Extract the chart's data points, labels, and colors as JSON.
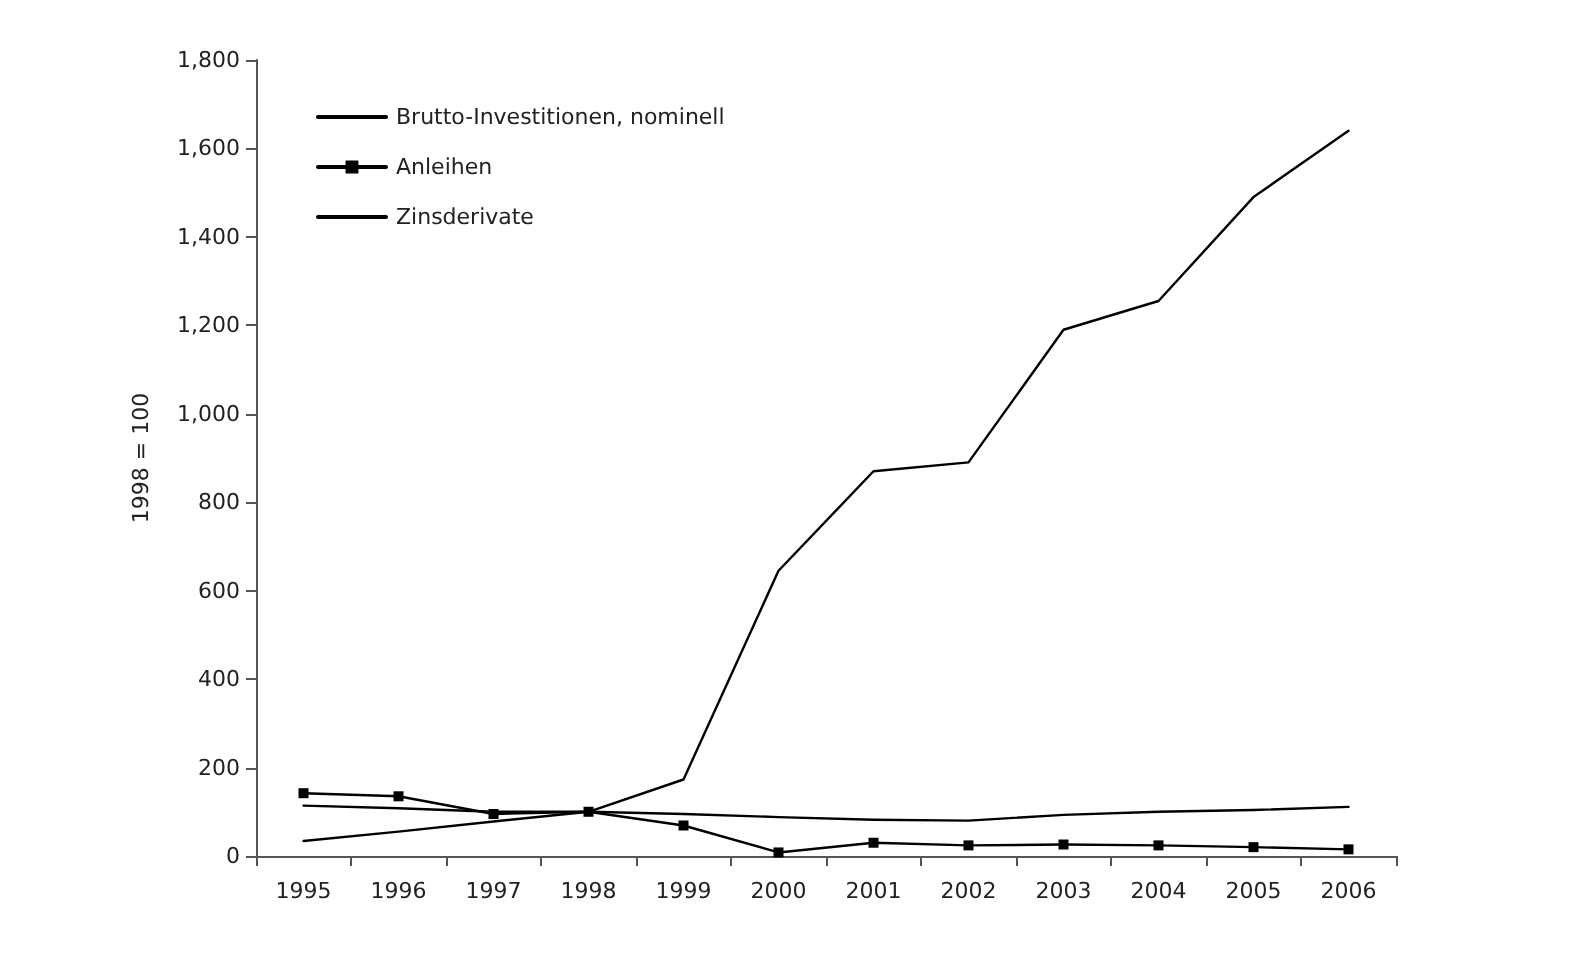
{
  "chart_data": {
    "type": "line",
    "ylabel": "1998 = 100",
    "categories": [
      "1995",
      "1996",
      "1997",
      "1998",
      "1999",
      "2000",
      "2001",
      "2002",
      "2003",
      "2004",
      "2005",
      "2006"
    ],
    "series": [
      {
        "name": "Brutto-Investitionen, nominell",
        "color": "#000000",
        "values": [
          34,
          55,
          78,
          100,
          173,
          645,
          870,
          890,
          1190,
          1255,
          1490,
          1640
        ]
      },
      {
        "name": "Anleihen",
        "color": "#000000",
        "marker": "square",
        "values": [
          142,
          135,
          95,
          100,
          69,
          8,
          30,
          24,
          26,
          24,
          20,
          15
        ]
      },
      {
        "name": "Zinsderivate",
        "color": "#000000",
        "values": [
          114,
          108,
          100,
          100,
          95,
          88,
          82,
          80,
          93,
          100,
          104,
          111
        ]
      }
    ],
    "ylim": [
      0,
      1800
    ],
    "yticks": [
      0,
      200,
      400,
      600,
      800,
      {
        "value": 1000,
        "label": "1,000"
      },
      {
        "value": 1200,
        "label": "1,200"
      },
      {
        "value": 1400,
        "label": "1,400"
      },
      {
        "value": 1600,
        "label": "1,600"
      },
      {
        "value": 1800,
        "label": "1,800"
      }
    ],
    "grid": false,
    "legend": "top left",
    "marker": "none",
    "line_style": "solid"
  }
}
